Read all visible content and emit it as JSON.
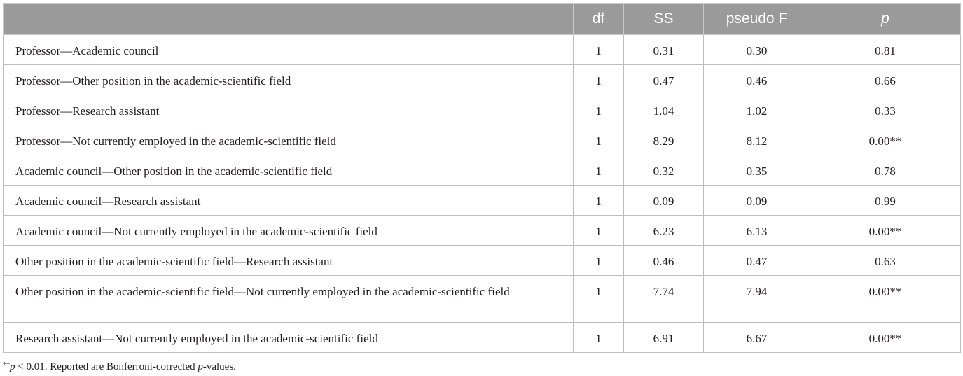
{
  "table": {
    "headers": {
      "comparison": "",
      "df": "df",
      "ss": "SS",
      "pseudo_f": "pseudo F",
      "p": "p"
    },
    "rows": [
      {
        "comparison": "Professor—Academic council",
        "df": "1",
        "ss": "0.31",
        "pseudo_f": "0.30",
        "p": "0.81"
      },
      {
        "comparison": "Professor—Other position in the academic-scientific field",
        "df": "1",
        "ss": "0.47",
        "pseudo_f": "0.46",
        "p": "0.66"
      },
      {
        "comparison": "Professor—Research assistant",
        "df": "1",
        "ss": "1.04",
        "pseudo_f": "1.02",
        "p": "0.33"
      },
      {
        "comparison": "Professor—Not currently employed in the academic-scientific field",
        "df": "1",
        "ss": "8.29",
        "pseudo_f": "8.12",
        "p": "0.00**"
      },
      {
        "comparison": "Academic council—Other position in the academic-scientific field",
        "df": "1",
        "ss": "0.32",
        "pseudo_f": "0.35",
        "p": "0.78"
      },
      {
        "comparison": "Academic council—Research assistant",
        "df": "1",
        "ss": "0.09",
        "pseudo_f": "0.09",
        "p": "0.99"
      },
      {
        "comparison": "Academic council—Not currently employed in the academic-scientific field",
        "df": "1",
        "ss": "6.23",
        "pseudo_f": "6.13",
        "p": "0.00**"
      },
      {
        "comparison": "Other position in the academic-scientific field—Research assistant",
        "df": "1",
        "ss": "0.46",
        "pseudo_f": "0.47",
        "p": "0.63"
      },
      {
        "comparison": "Other position in the academic-scientific field—Not currently employed in the academic-scientific field",
        "df": "1",
        "ss": "7.74",
        "pseudo_f": "7.94",
        "p": "0.00**"
      },
      {
        "comparison": "Research assistant—Not currently employed in the academic-scientific field",
        "df": "1",
        "ss": "6.91",
        "pseudo_f": "6.67",
        "p": "0.00**"
      }
    ]
  },
  "footnote": {
    "marker": "**",
    "p_symbol": "p",
    "threshold": " < 0.01. Reported are Bonferroni-corrected ",
    "p_symbol_2": "p",
    "tail": "-values."
  },
  "colors": {
    "header_bg": "#9a9a9a",
    "header_text": "#ffffff",
    "border": "#bdbdbd",
    "text": "#231f20"
  }
}
